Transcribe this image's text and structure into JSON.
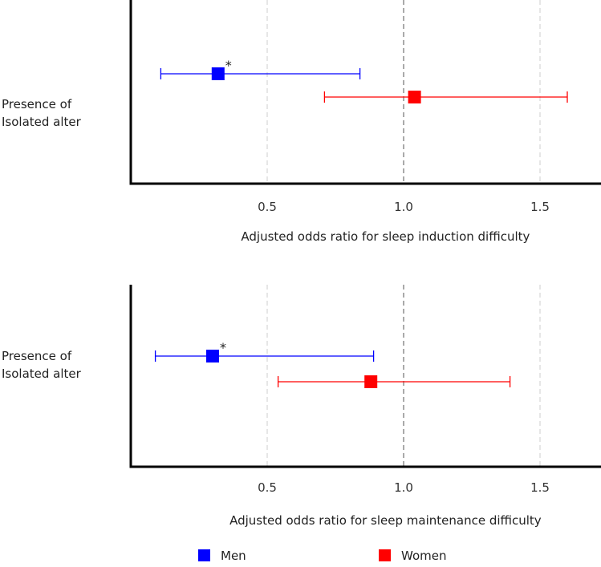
{
  "chart_data": [
    {
      "type": "forest",
      "row_label": [
        "Presence of",
        "Isolated alter"
      ],
      "xlabel": "Adjusted odds ratio for sleep induction difficulty",
      "xlim": [
        0,
        1.72
      ],
      "xticks": [
        0.5,
        1.0,
        1.5
      ],
      "xtick_labels": [
        "0.5",
        "1.0",
        "1.5"
      ],
      "reference_line": 1.0,
      "series": [
        {
          "name": "Men",
          "or": 0.32,
          "ci": [
            0.11,
            0.84
          ],
          "annotation": "*"
        },
        {
          "name": "Women",
          "or": 1.04,
          "ci": [
            0.71,
            1.6
          ],
          "annotation": ""
        }
      ]
    },
    {
      "type": "forest",
      "row_label": [
        "Presence of",
        "Isolated alter"
      ],
      "xlabel": "Adjusted odds ratio for sleep maintenance difficulty",
      "xlim": [
        0,
        1.72
      ],
      "xticks": [
        0.5,
        1.0,
        1.5
      ],
      "xtick_labels": [
        "0.5",
        "1.0",
        "1.5"
      ],
      "reference_line": 1.0,
      "series": [
        {
          "name": "Men",
          "or": 0.3,
          "ci": [
            0.09,
            0.89
          ],
          "annotation": "*"
        },
        {
          "name": "Women",
          "or": 0.88,
          "ci": [
            0.54,
            1.39
          ],
          "annotation": ""
        }
      ]
    }
  ],
  "legend": [
    {
      "name": "Men",
      "color": "#0000ff"
    },
    {
      "name": "Women",
      "color": "#ff0000"
    }
  ],
  "colors": {
    "Men": "#0000ff",
    "Women": "#ff0000"
  }
}
